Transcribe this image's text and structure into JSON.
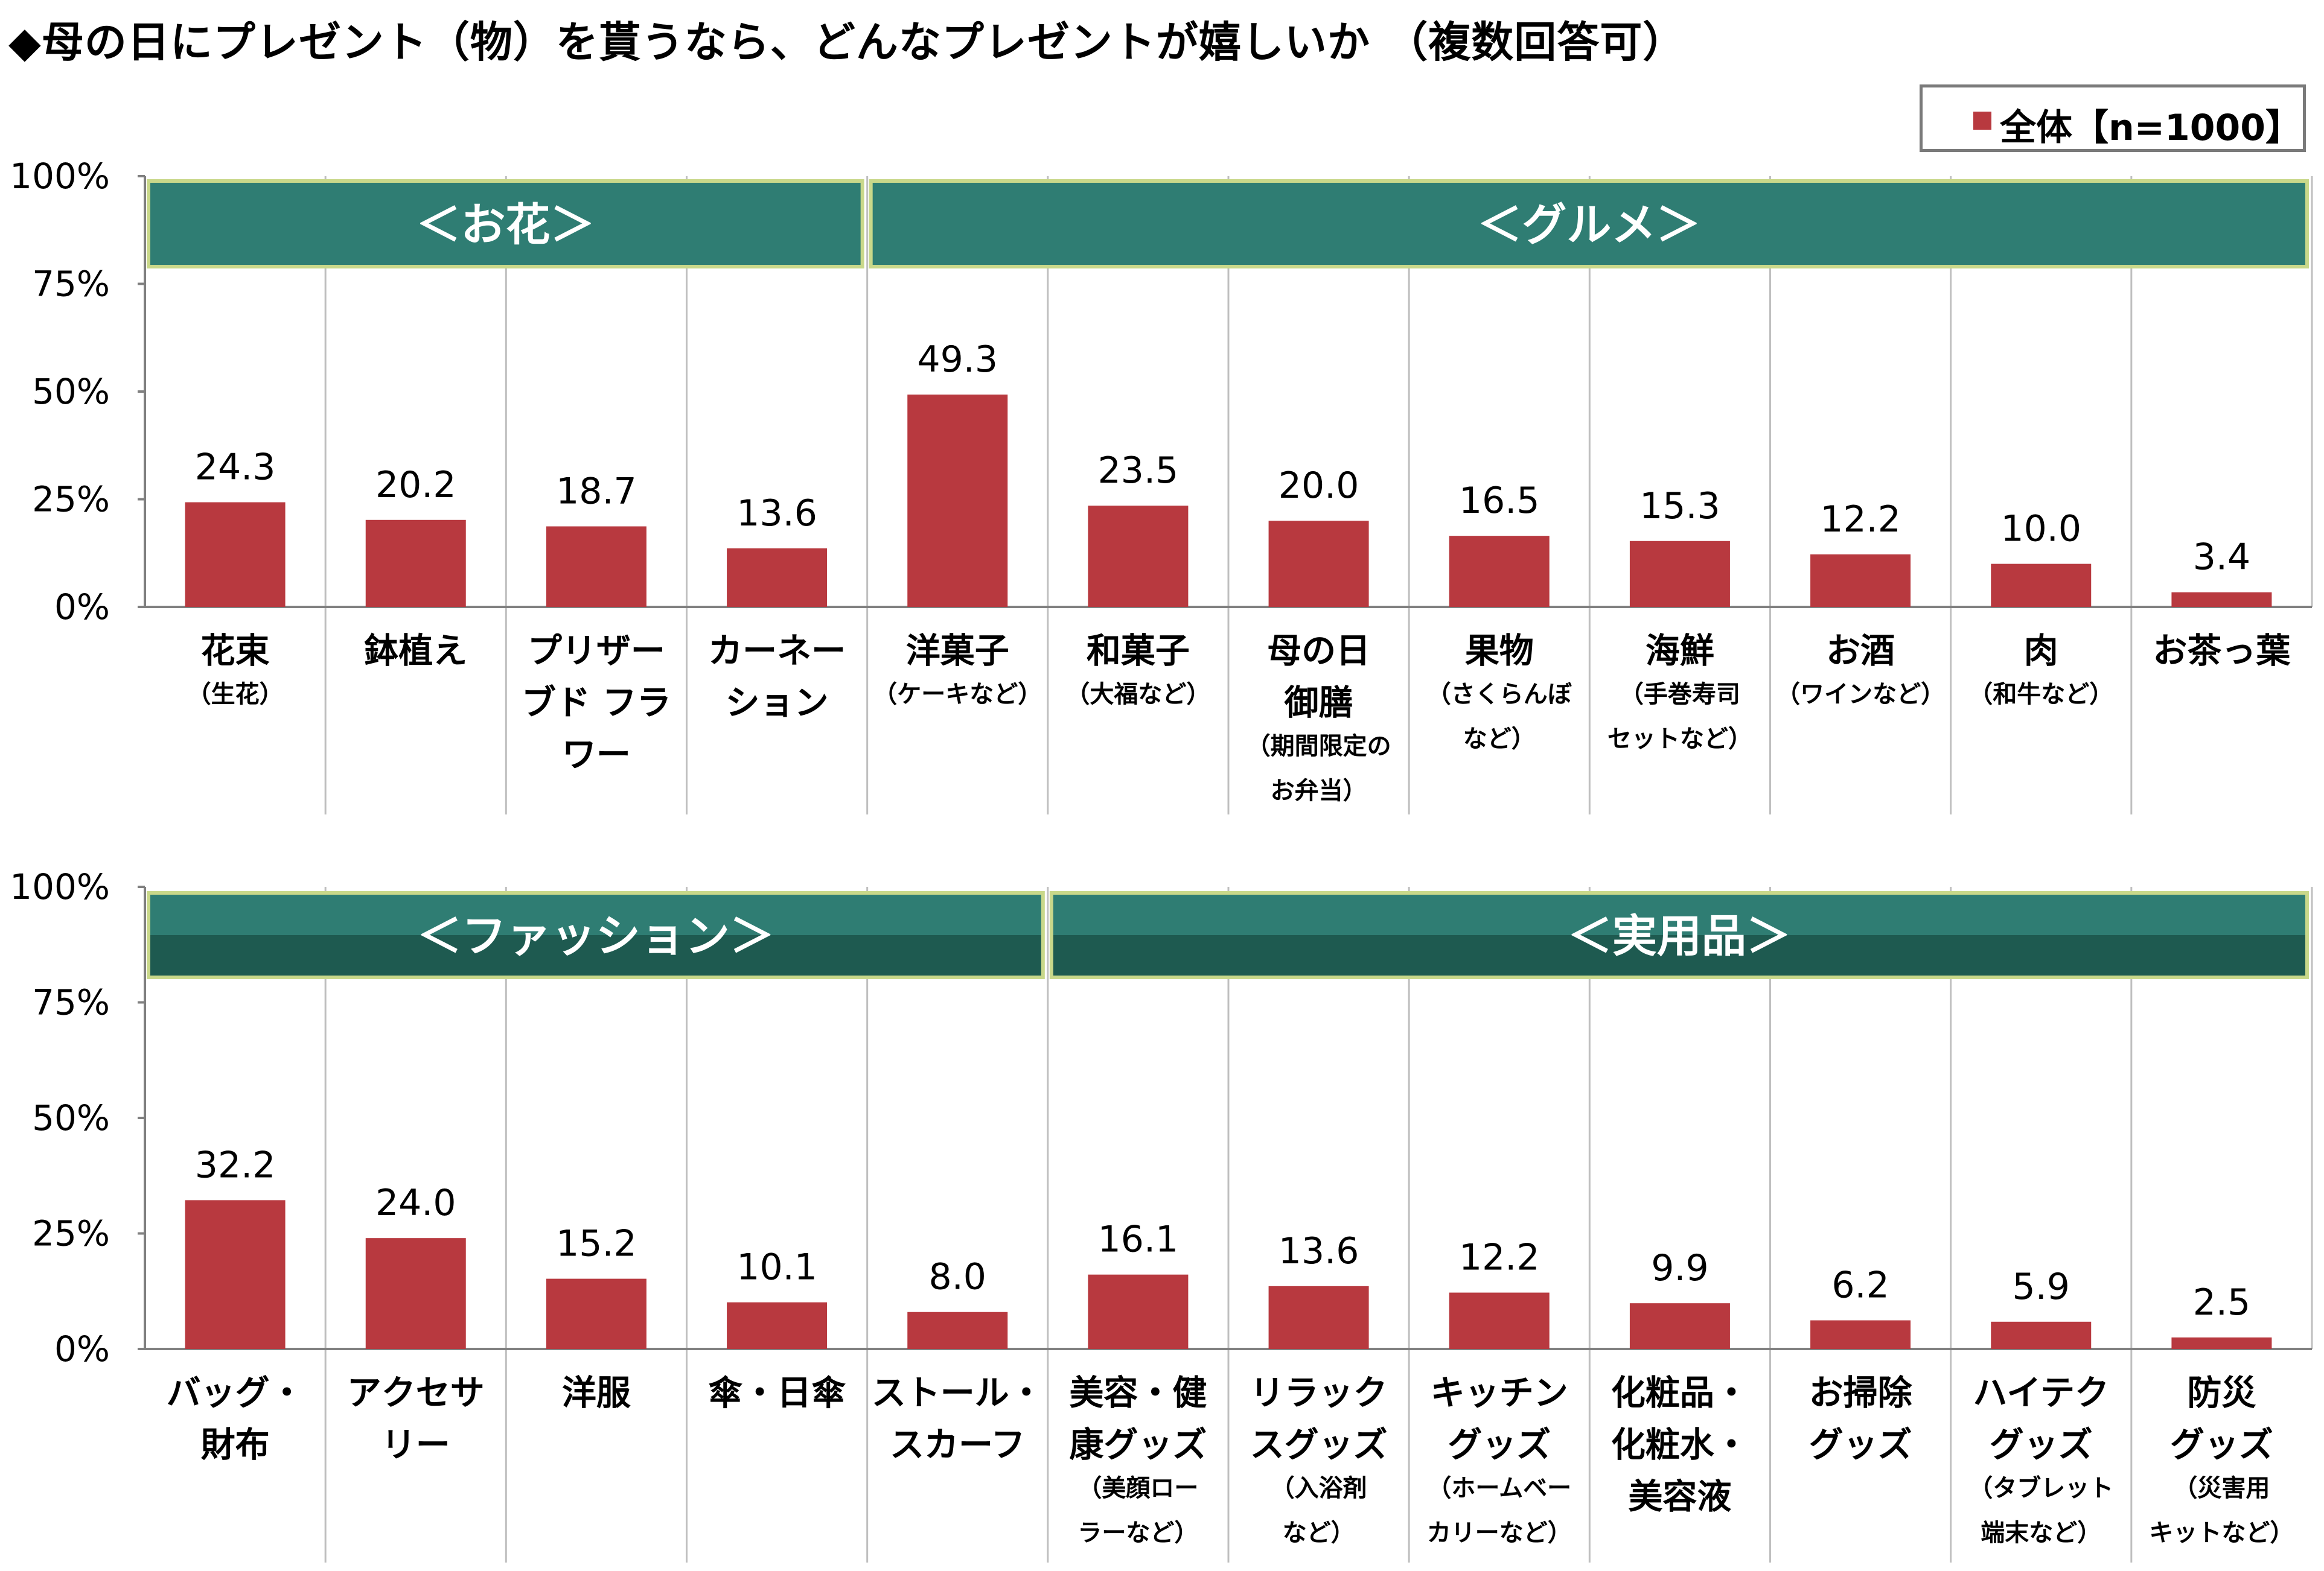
{
  "title": "◆母の日にプレゼント（物）を貰うなら、どんなプレゼントが嬉しいか （複数回答可）",
  "legend": {
    "label": "全体【n=1000】"
  },
  "colors": {
    "bar": "#b8393f",
    "group_banner": "#2f7d73",
    "group_banner_dark": "#1e5a50",
    "group_border": "#c9d88a"
  },
  "chart_data": [
    {
      "type": "bar",
      "ylim": [
        0,
        100
      ],
      "yticks": [
        "0%",
        "25%",
        "50%",
        "75%",
        "100%"
      ],
      "groups": [
        {
          "label": "＜お花＞",
          "from": 0,
          "to": 3
        },
        {
          "label": "＜グルメ＞",
          "from": 4,
          "to": 11
        }
      ],
      "categories": [
        {
          "main": [
            "花束"
          ],
          "sub": [
            "（生花）"
          ]
        },
        {
          "main": [
            "鉢植え"
          ],
          "sub": []
        },
        {
          "main": [
            "プリザー",
            "ブド フラ",
            "ワー"
          ],
          "sub": []
        },
        {
          "main": [
            "カーネー",
            "ション"
          ],
          "sub": []
        },
        {
          "main": [
            "洋菓子"
          ],
          "sub": [
            "（ケーキなど）"
          ]
        },
        {
          "main": [
            "和菓子"
          ],
          "sub": [
            "（大福など）"
          ]
        },
        {
          "main": [
            "母の日",
            "御膳"
          ],
          "sub": [
            "（期間限定の",
            "お弁当）"
          ]
        },
        {
          "main": [
            "果物"
          ],
          "sub": [
            "（さくらんぼ",
            "など）"
          ]
        },
        {
          "main": [
            "海鮮"
          ],
          "sub": [
            "（手巻寿司",
            "セットなど）"
          ]
        },
        {
          "main": [
            "お酒"
          ],
          "sub": [
            "（ワインなど）"
          ]
        },
        {
          "main": [
            "肉"
          ],
          "sub": [
            "（和牛など）"
          ]
        },
        {
          "main": [
            "お茶っ葉"
          ],
          "sub": []
        }
      ],
      "values": [
        "24.3",
        "20.2",
        "18.7",
        "13.6",
        "49.3",
        "23.5",
        "20.0",
        "16.5",
        "15.3",
        "12.2",
        "10.0",
        "3.4"
      ]
    },
    {
      "type": "bar",
      "ylim": [
        0,
        100
      ],
      "yticks": [
        "0%",
        "25%",
        "50%",
        "75%",
        "100%"
      ],
      "groups": [
        {
          "label": "＜ファッション＞",
          "from": 0,
          "to": 4
        },
        {
          "label": "＜実用品＞",
          "from": 5,
          "to": 11
        }
      ],
      "categories": [
        {
          "main": [
            "バッグ・",
            "財布"
          ],
          "sub": []
        },
        {
          "main": [
            "アクセサ",
            "リー"
          ],
          "sub": []
        },
        {
          "main": [
            "洋服"
          ],
          "sub": []
        },
        {
          "main": [
            "傘・日傘"
          ],
          "sub": []
        },
        {
          "main": [
            "ストール・",
            "スカーフ"
          ],
          "sub": []
        },
        {
          "main": [
            "美容・健",
            "康グッズ"
          ],
          "sub": [
            "（美顔ロー",
            "ラーなど）"
          ]
        },
        {
          "main": [
            "リラック",
            "スグッズ"
          ],
          "sub": [
            "（入浴剤",
            "など）"
          ]
        },
        {
          "main": [
            "キッチン",
            "グッズ"
          ],
          "sub": [
            "（ホームベー",
            "カリーなど）"
          ]
        },
        {
          "main": [
            "化粧品・",
            "化粧水・",
            "美容液"
          ],
          "sub": []
        },
        {
          "main": [
            "お掃除",
            "グッズ"
          ],
          "sub": []
        },
        {
          "main": [
            "ハイテク",
            "グッズ"
          ],
          "sub": [
            "（タブレット",
            "端末など）"
          ]
        },
        {
          "main": [
            "防災",
            "グッズ"
          ],
          "sub": [
            "（災害用",
            "キットなど）"
          ]
        }
      ],
      "values": [
        "32.2",
        "24.0",
        "15.2",
        "10.1",
        "8.0",
        "16.1",
        "13.6",
        "12.2",
        "9.9",
        "6.2",
        "5.9",
        "2.5"
      ]
    }
  ]
}
